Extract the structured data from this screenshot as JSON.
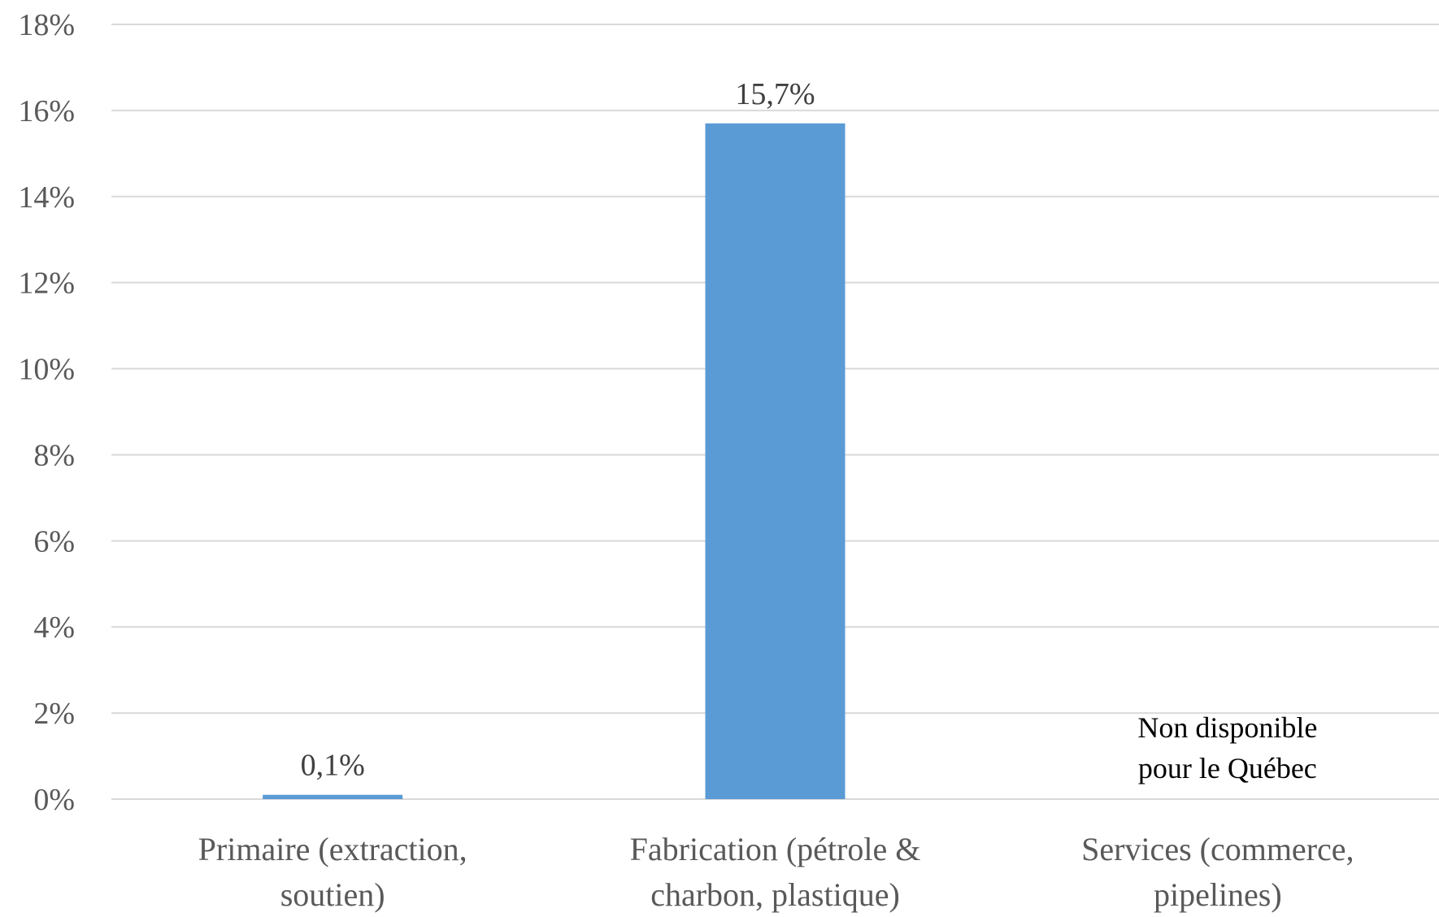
{
  "chart_data": {
    "type": "bar",
    "categories": [
      [
        "Primaire (extraction,",
        "soutien)"
      ],
      [
        "Fabrication (pétrole &",
        "charbon, plastique)"
      ],
      [
        "Services (commerce,",
        "pipelines)"
      ]
    ],
    "values": [
      0.1,
      15.7,
      null
    ],
    "data_labels": [
      "0,1%",
      "15,7%",
      ""
    ],
    "annotations": [
      {
        "category_index": 2,
        "lines": [
          "Non disponible",
          "pour le Québec"
        ]
      }
    ],
    "y_ticks": [
      "0%",
      "2%",
      "4%",
      "6%",
      "8%",
      "10%",
      "12%",
      "14%",
      "16%",
      "18%"
    ],
    "ylim": [
      0,
      18
    ],
    "y_step": 2,
    "grid": true,
    "legend": "none",
    "bar_color": "#5b9bd5",
    "title": "",
    "xlabel": "",
    "ylabel": ""
  }
}
